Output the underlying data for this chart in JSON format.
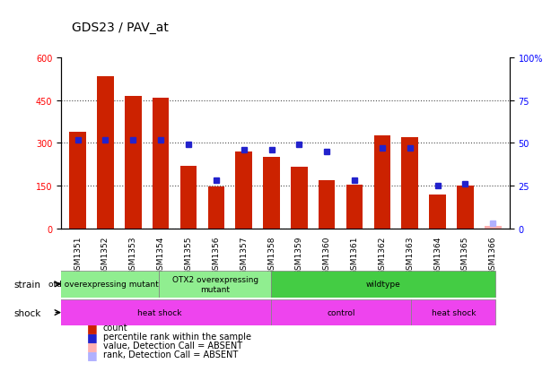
{
  "title": "GDS23 / PAV_at",
  "samples": [
    "GSM1351",
    "GSM1352",
    "GSM1353",
    "GSM1354",
    "GSM1355",
    "GSM1356",
    "GSM1357",
    "GSM1358",
    "GSM1359",
    "GSM1360",
    "GSM1361",
    "GSM1362",
    "GSM1363",
    "GSM1364",
    "GSM1365",
    "GSM1366"
  ],
  "counts": [
    340,
    535,
    465,
    460,
    220,
    148,
    270,
    250,
    215,
    168,
    152,
    328,
    322,
    118,
    150,
    0
  ],
  "percentile_ranks": [
    52,
    52,
    52,
    52,
    49,
    28,
    46,
    46,
    49,
    45,
    28,
    47,
    47,
    25,
    26,
    0
  ],
  "absent_value": [
    0,
    0,
    0,
    0,
    0,
    0,
    0,
    0,
    0,
    0,
    0,
    0,
    0,
    0,
    0,
    8
  ],
  "absent_rank": [
    0,
    0,
    0,
    0,
    0,
    0,
    0,
    0,
    0,
    0,
    0,
    0,
    0,
    0,
    0,
    3
  ],
  "ylim_left": [
    0,
    600
  ],
  "ylim_right": [
    0,
    100
  ],
  "yticks_left": [
    0,
    150,
    300,
    450,
    600
  ],
  "yticks_right": [
    0,
    25,
    50,
    75,
    100
  ],
  "bar_color": "#CC2200",
  "rank_color": "#2222CC",
  "absent_val_color": "#FFB0B0",
  "absent_rank_color": "#B0B0FF",
  "strain_groups": [
    {
      "label": "otd overexpressing mutant",
      "start": 0,
      "end": 3,
      "color": "#90EE90"
    },
    {
      "label": "OTX2 overexpressing\nmutant",
      "start": 4,
      "end": 7,
      "color": "#90EE90"
    },
    {
      "label": "wildtype",
      "start": 8,
      "end": 15,
      "color": "#44CC44"
    }
  ],
  "shock_groups": [
    {
      "label": "heat shock",
      "start": 0,
      "end": 7,
      "color": "#DD44DD"
    },
    {
      "label": "control",
      "start": 8,
      "end": 12,
      "color": "#DD44DD"
    },
    {
      "label": "heat shock",
      "start": 13,
      "end": 15,
      "color": "#DD44DD"
    }
  ],
  "strain_label": "strain",
  "shock_label": "shock",
  "legend_items": [
    {
      "label": "count",
      "color": "#CC2200",
      "marker": "s"
    },
    {
      "label": "percentile rank within the sample",
      "color": "#2222CC",
      "marker": "s"
    },
    {
      "label": "value, Detection Call = ABSENT",
      "color": "#FFB0B0",
      "marker": "s"
    },
    {
      "label": "rank, Detection Call = ABSENT",
      "color": "#B0B0FF",
      "marker": "s"
    }
  ],
  "bar_width": 0.6,
  "rank_marker_size": 8,
  "grid_color": "#000000",
  "grid_alpha": 0.3,
  "grid_linestyle": "dotted"
}
